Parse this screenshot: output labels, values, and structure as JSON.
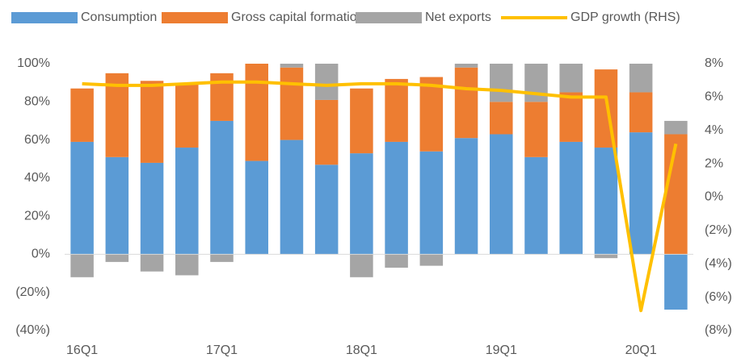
{
  "chart_data": {
    "type": "bar",
    "stacked": true,
    "categories": [
      "16Q1",
      null,
      null,
      null,
      "17Q1",
      null,
      null,
      null,
      "18Q1",
      null,
      null,
      null,
      "19Q1",
      null,
      null,
      null,
      "20Q1",
      null
    ],
    "series": [
      {
        "name": "Consumption",
        "color": "#5b9bd5",
        "values": [
          59,
          51,
          48,
          56,
          70,
          49,
          60,
          47,
          53,
          59,
          54,
          61,
          63,
          51,
          59,
          56,
          64,
          -29
        ]
      },
      {
        "name": "Gross capital formation",
        "color": "#ed7d31",
        "values": [
          28,
          44,
          43,
          34,
          25,
          51,
          38,
          34,
          34,
          33,
          39,
          37,
          17,
          29,
          26,
          41,
          21,
          63
        ]
      },
      {
        "name": "Net exports",
        "color": "#a5a5a5",
        "values": [
          -12,
          -4,
          -9,
          -11,
          -4,
          0,
          2,
          19,
          -12,
          -7,
          -6,
          2,
          20,
          20,
          15,
          -2,
          15,
          7
        ]
      },
      {
        "name": "GDP growth (RHS)",
        "color": "#ffc000",
        "type": "line",
        "axis": "y2",
        "values": [
          6.8,
          6.7,
          6.7,
          6.8,
          6.9,
          6.9,
          6.8,
          6.7,
          6.8,
          6.8,
          6.7,
          6.5,
          6.4,
          6.2,
          6.0,
          6.0,
          -6.8,
          3.2
        ]
      }
    ],
    "ylim": [
      -40,
      100
    ],
    "yticks": [
      {
        "value": -40,
        "label": "(40%)"
      },
      {
        "value": -20,
        "label": "(20%)"
      },
      {
        "value": 0,
        "label": "0%"
      },
      {
        "value": 20,
        "label": "20%"
      },
      {
        "value": 40,
        "label": "40%"
      },
      {
        "value": 60,
        "label": "60%"
      },
      {
        "value": 80,
        "label": "80%"
      },
      {
        "value": 100,
        "label": "100%"
      }
    ],
    "y2lim": [
      -8,
      8
    ],
    "y2ticks": [
      {
        "value": -8,
        "label": "(8%)"
      },
      {
        "value": -6,
        "label": "(6%)"
      },
      {
        "value": -4,
        "label": "(4%)"
      },
      {
        "value": -2,
        "label": "(2%)"
      },
      {
        "value": 0,
        "label": "0%"
      },
      {
        "value": 2,
        "label": "2%"
      },
      {
        "value": 4,
        "label": "4%"
      },
      {
        "value": 6,
        "label": "6%"
      },
      {
        "value": 8,
        "label": "8%"
      }
    ],
    "legend": "top"
  }
}
